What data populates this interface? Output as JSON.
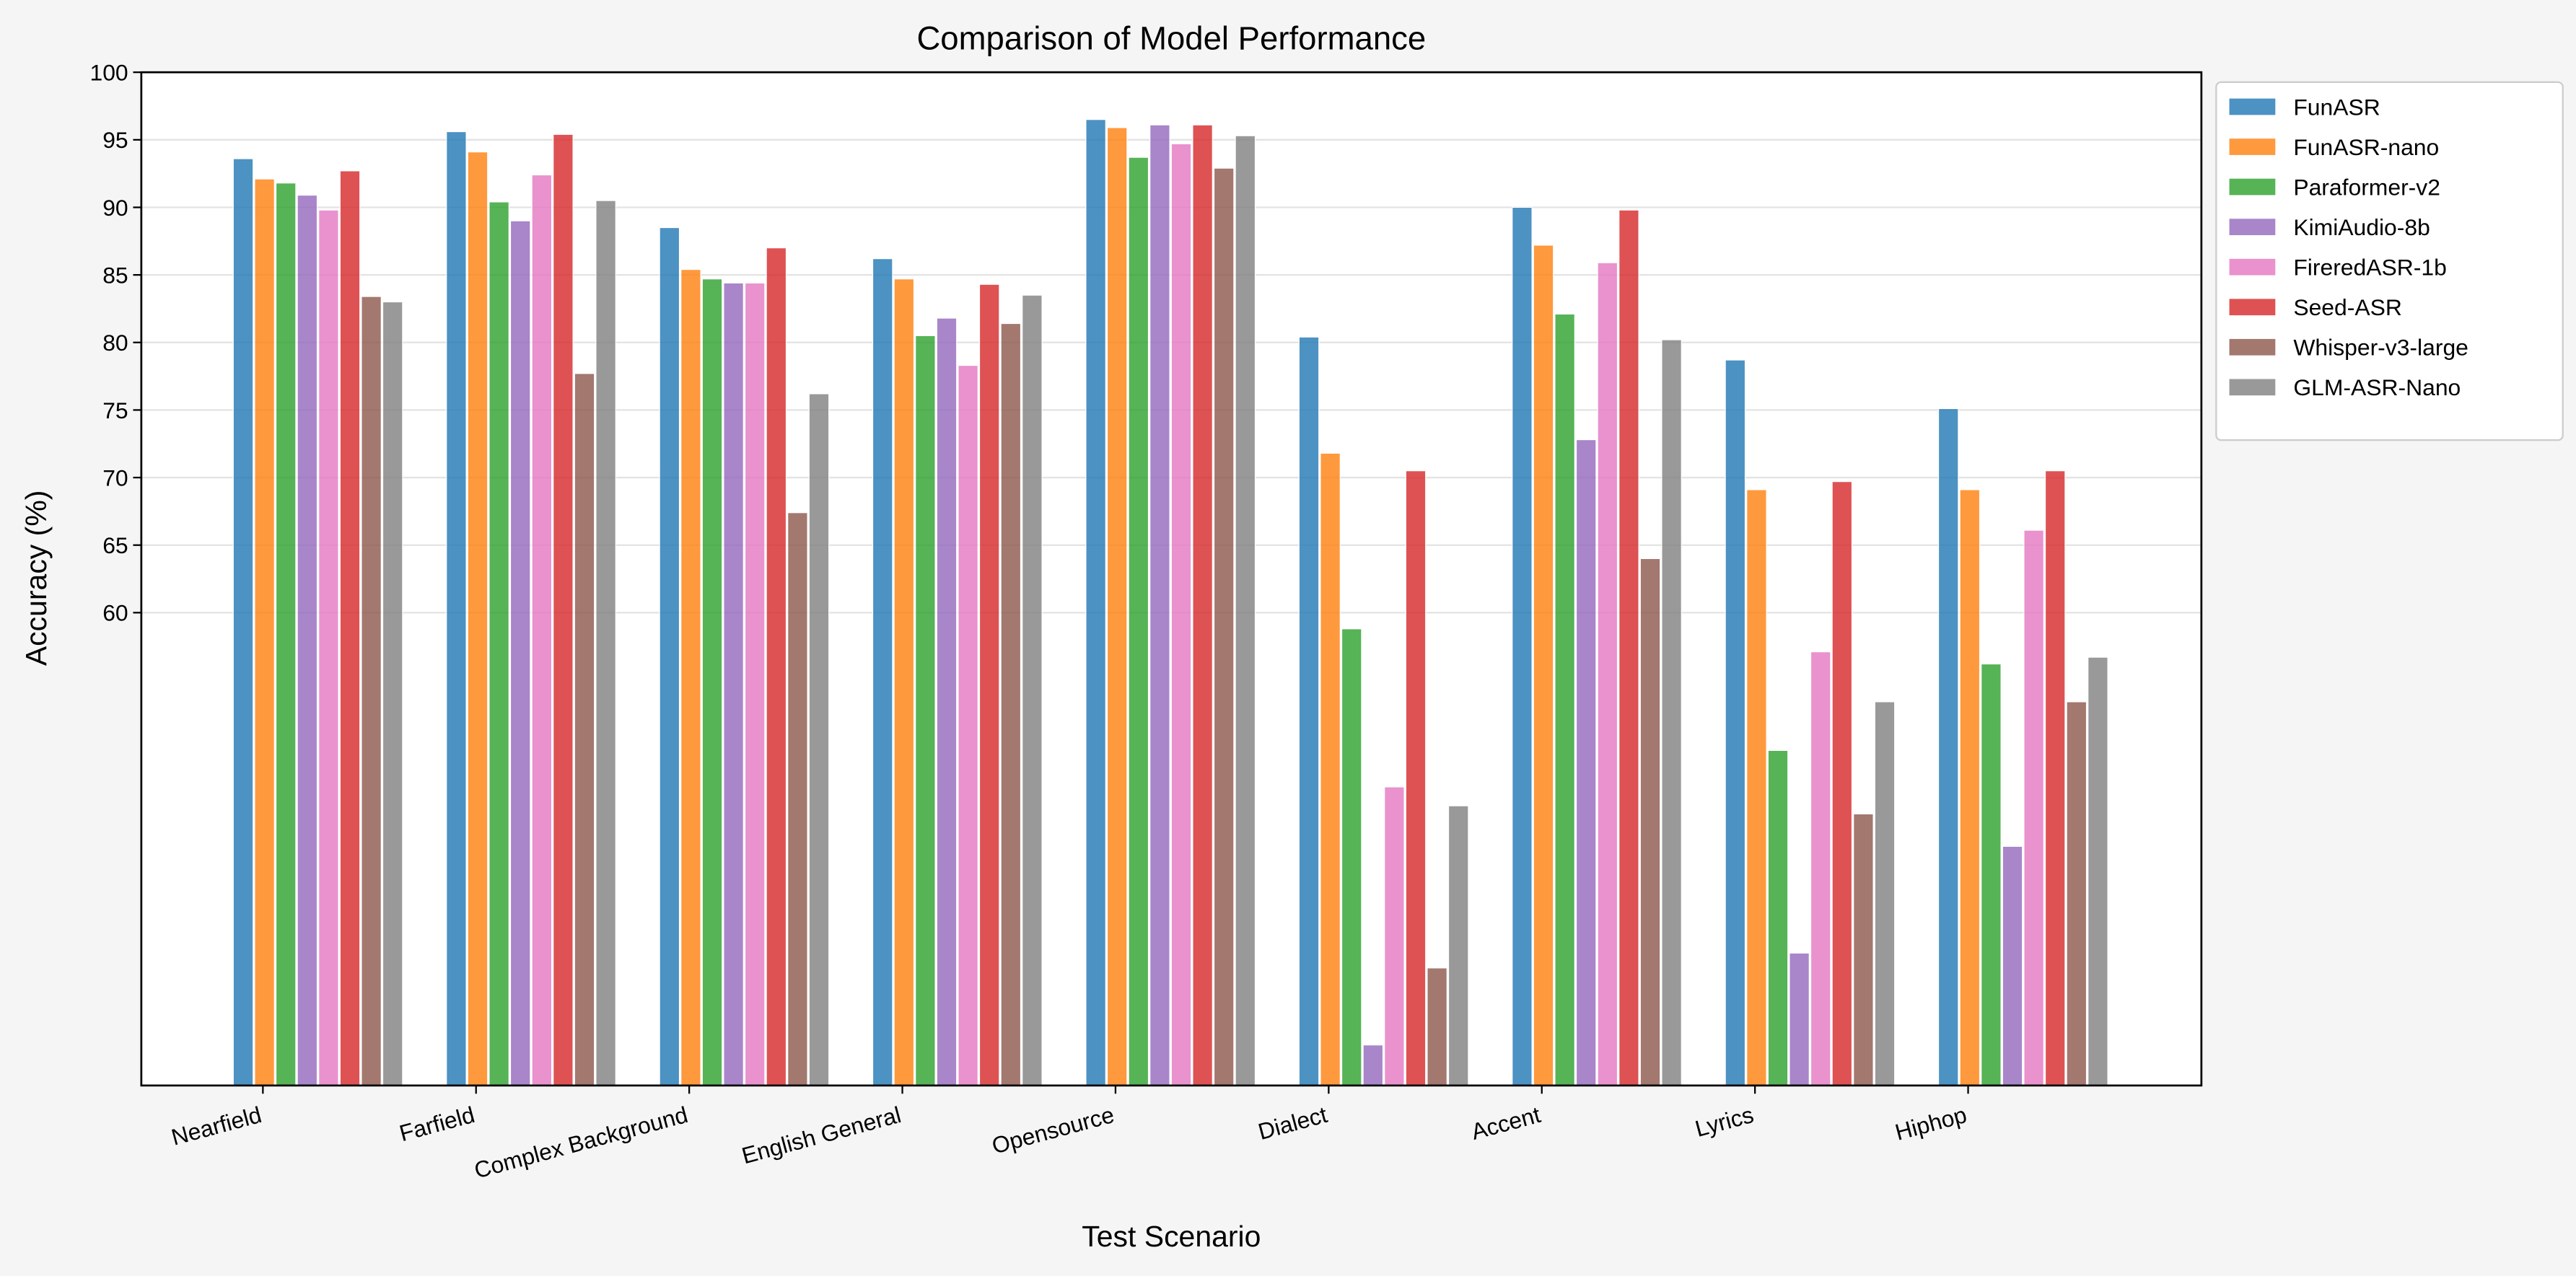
{
  "chart_data": {
    "type": "bar",
    "title": "Comparison of Model Performance",
    "xlabel": "Test Scenario",
    "ylabel": "Accuracy (%)",
    "ylim": [
      25,
      100
    ],
    "yticks": [
      60,
      65,
      70,
      75,
      80,
      85,
      90,
      95,
      100
    ],
    "grid": "horizontal",
    "legend_placement": "outside-top-right",
    "categories": [
      "Nearfield",
      "Farfield",
      "Complex Background",
      "English General",
      "Opensource",
      "Dialect",
      "Accent",
      "Lyrics",
      "Hiphop"
    ],
    "series": [
      {
        "name": "FunASR",
        "color": "#1f77b4",
        "values": [
          93.6,
          95.6,
          88.5,
          86.2,
          96.5,
          80.4,
          90.0,
          78.7,
          75.1
        ]
      },
      {
        "name": "FunASR-nano",
        "color": "#ff7f0e",
        "values": [
          92.1,
          94.1,
          85.4,
          84.7,
          95.9,
          71.8,
          87.2,
          69.1,
          69.1
        ]
      },
      {
        "name": "Paraformer-v2",
        "color": "#2ca02c",
        "values": [
          91.8,
          90.4,
          84.7,
          80.5,
          93.7,
          58.8,
          82.1,
          49.8,
          56.2
        ]
      },
      {
        "name": "KimiAudio-8b",
        "color": "#9467bd",
        "values": [
          90.9,
          89.0,
          84.4,
          81.8,
          96.1,
          28.0,
          72.8,
          34.8,
          42.7
        ]
      },
      {
        "name": "FireredASR-1b",
        "color": "#e377c2",
        "values": [
          89.8,
          92.4,
          84.4,
          78.3,
          94.7,
          47.1,
          85.9,
          57.1,
          66.1
        ]
      },
      {
        "name": "Seed-ASR",
        "color": "#d62728",
        "values": [
          92.7,
          95.4,
          87.0,
          84.3,
          96.1,
          70.5,
          89.8,
          69.7,
          70.5
        ]
      },
      {
        "name": "Whisper-v3-large",
        "color": "#8c564b",
        "values": [
          83.4,
          77.7,
          67.4,
          81.4,
          92.9,
          33.7,
          64.0,
          45.1,
          53.4
        ]
      },
      {
        "name": "GLM-ASR-Nano",
        "color": "#7f7f7f",
        "values": [
          83.0,
          90.5,
          76.2,
          83.5,
          95.3,
          45.7,
          80.2,
          53.4,
          56.7
        ]
      }
    ]
  }
}
